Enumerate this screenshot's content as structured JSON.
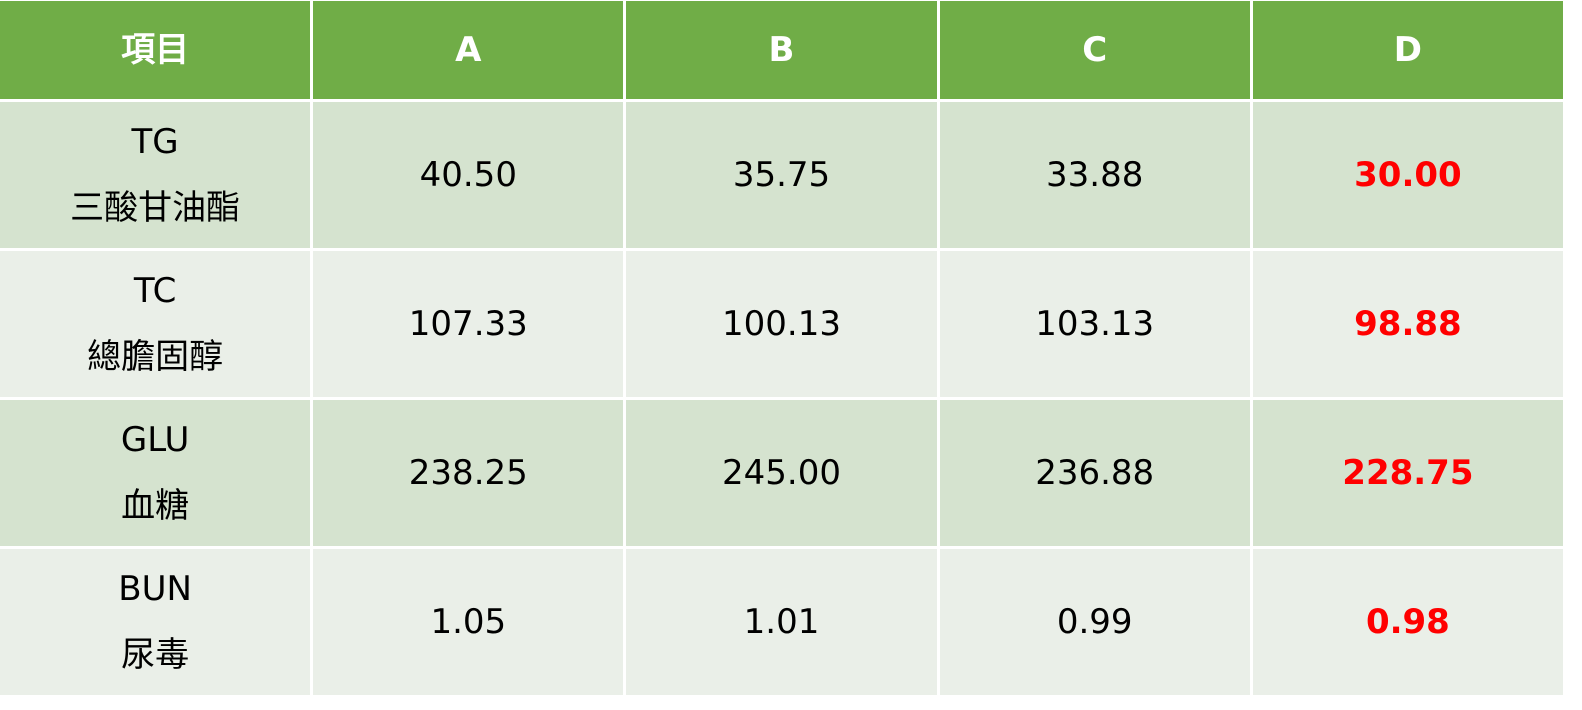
{
  "table": {
    "header": [
      "項目",
      "A",
      "B",
      "C",
      "D"
    ],
    "rows": [
      {
        "name": "TG",
        "subname": "三酸甘油酯",
        "values": [
          "40.50",
          "35.75",
          "33.88",
          "30.00"
        ]
      },
      {
        "name": "TC",
        "subname": "總膽固醇",
        "values": [
          "107.33",
          "100.13",
          "103.13",
          "98.88"
        ]
      },
      {
        "name": "GLU",
        "subname": "血糖",
        "values": [
          "238.25",
          "245.00",
          "236.88",
          "228.75"
        ]
      },
      {
        "name": "BUN",
        "subname": "尿毒",
        "values": [
          "1.05",
          "1.01",
          "0.99",
          "0.98"
        ]
      }
    ]
  }
}
